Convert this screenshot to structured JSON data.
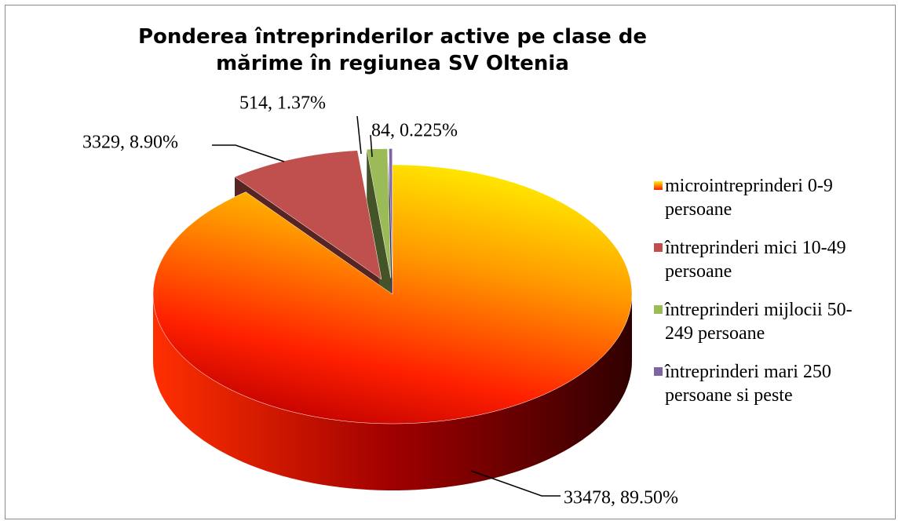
{
  "chart_data": {
    "type": "pie3d",
    "title": "Ponderea întreprinderilor active pe clase de mărime în regiunea SV Oltenia",
    "categories": [
      "microintreprinderi 0-9 persoane",
      "întreprinderi mici 10-49 persoane",
      "întreprinderi mijlocii 50-249 persoane",
      "întreprinderi mari 250 persoane si peste"
    ],
    "values": [
      33478,
      3329,
      514,
      84
    ],
    "value_labels": [
      "33478, 89.50%",
      "3329, 8.90%",
      "514, 1.37%",
      "84, 0.225%"
    ],
    "colors": [
      "#ff9a00",
      "#c0504d",
      "#9bbb59",
      "#8064a2"
    ]
  }
}
